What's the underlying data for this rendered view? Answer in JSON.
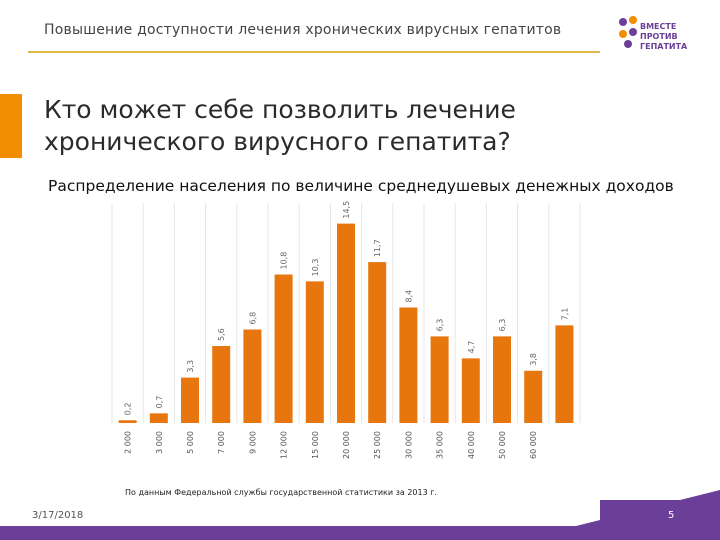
{
  "header": {
    "title": "Повышение доступности лечения хронических вирусных гепатитов"
  },
  "logo": {
    "line1": "ВМЕСТЕ",
    "line2": "ПРОТИВ ГЕПАТИТА"
  },
  "main": {
    "title": "Кто может себе позволить лечение хронического вирусного гепатита?",
    "subtitle": "Распределение населения по величине среднедушевых денежных доходов"
  },
  "source_note": "По данным Федеральной службы государственной статистики за 2013 г.",
  "footer": {
    "date": "3/17/2018",
    "page": "5"
  },
  "colors": {
    "bar": "#e8760f",
    "accent": "#f28c00",
    "brand_purple": "#6b3f98",
    "rule": "#e0b84a"
  },
  "chart_data": {
    "type": "bar",
    "title": "",
    "xlabel": "",
    "ylabel": "",
    "categories": [
      "2 000",
      "3 000",
      "5 000",
      "7 000",
      "9 000",
      "12 000",
      "15 000",
      "20 000",
      "25 000",
      "30 000",
      "35 000",
      "40 000",
      "50 000",
      "60 000",
      ""
    ],
    "value_labels": [
      "0,2",
      "0,7",
      "3,3",
      "5,6",
      "6,8",
      "10,8",
      "10,3",
      "14,5",
      "11,7",
      "8,4",
      "6,3",
      "4,7",
      "6,3",
      "3,8",
      "7,1"
    ],
    "values": [
      0.2,
      0.7,
      3.3,
      5.6,
      6.8,
      10.8,
      10.3,
      14.5,
      11.7,
      8.4,
      6.3,
      4.7,
      6.3,
      3.8,
      7.1
    ],
    "ylim": [
      0,
      16
    ],
    "grid": "vertical"
  }
}
